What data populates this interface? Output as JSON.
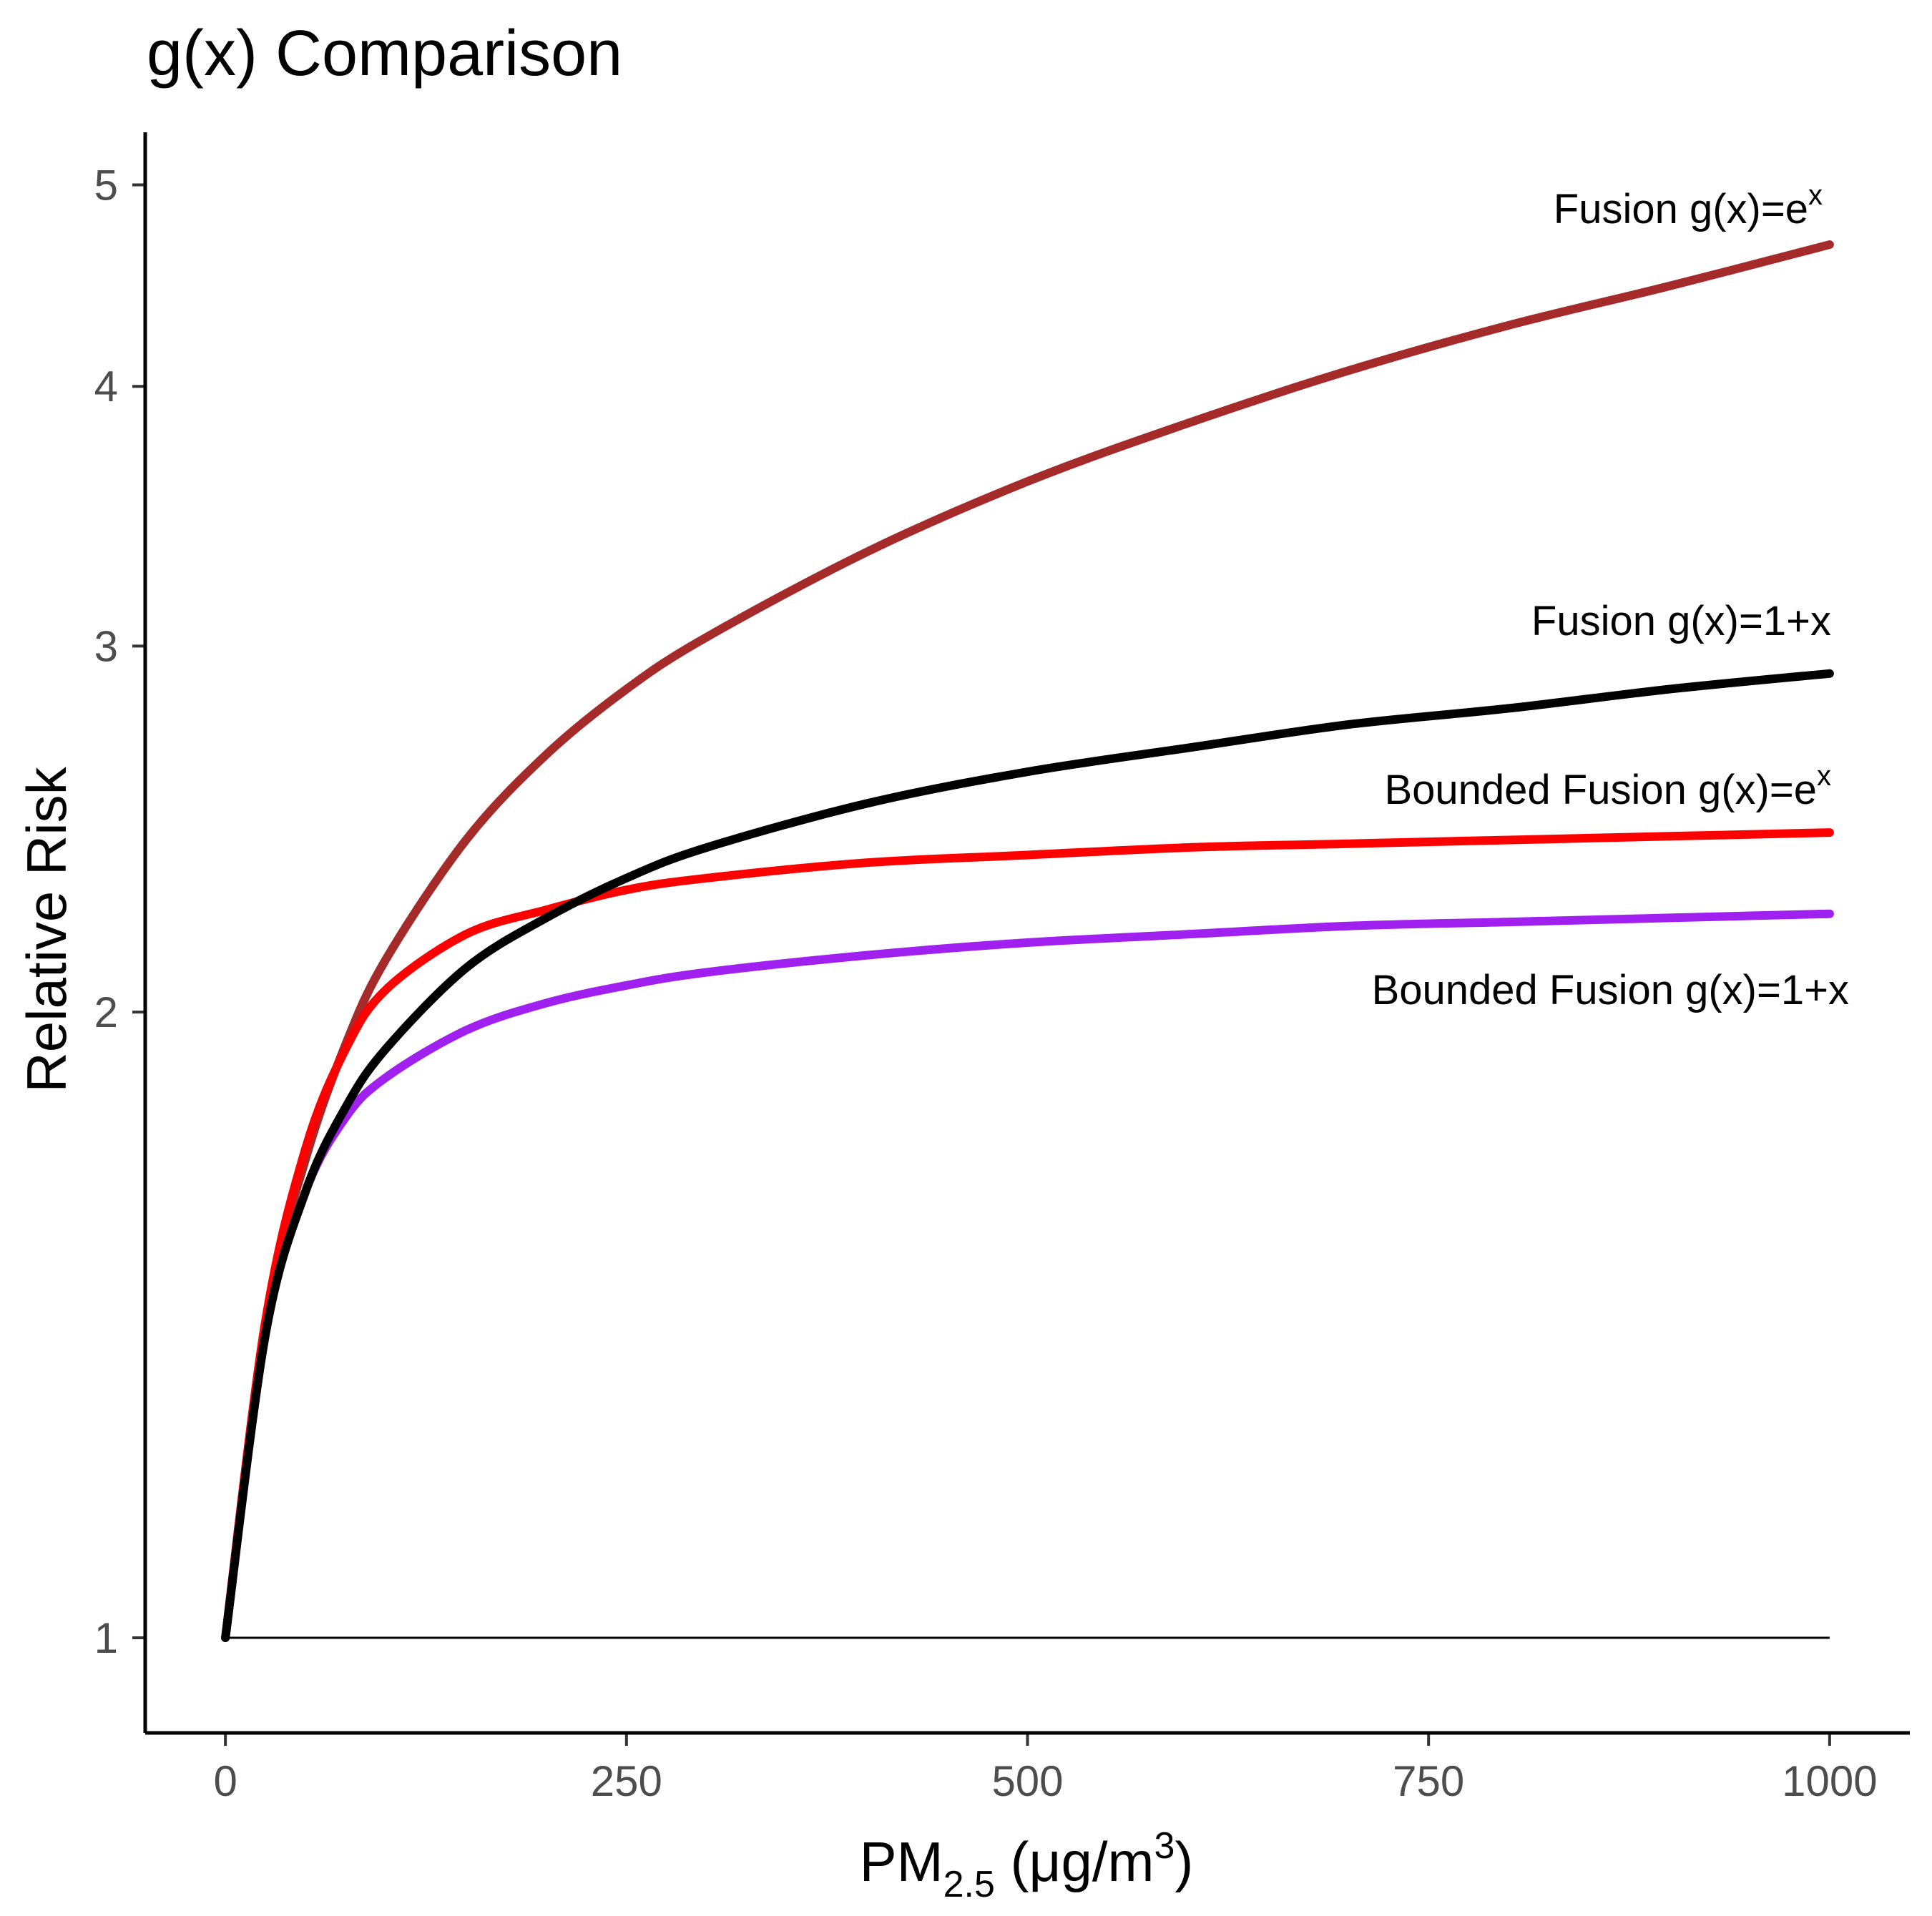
{
  "chart_data": {
    "type": "line",
    "title": "g(x) Comparison",
    "xlabel": {
      "main": "PM",
      "sub": "2.5",
      "unit_open": " (μg/m",
      "unit_sup": "3",
      "unit_close": ")"
    },
    "ylabel": "Relative Risk",
    "y_scale": "log",
    "xlim": [
      -50,
      1050
    ],
    "ylim": [
      0.9,
      5.3
    ],
    "x_ticks": [
      0,
      250,
      500,
      750,
      1000
    ],
    "x_tick_labels": [
      "0",
      "250",
      "500",
      "750",
      "1000"
    ],
    "y_ticks": [
      1,
      2,
      3,
      4,
      5
    ],
    "y_tick_labels": [
      "1",
      "2",
      "3",
      "4",
      "5"
    ],
    "grid": false,
    "legend": "none (direct labels at right)",
    "x": [
      0,
      25,
      50,
      75,
      100,
      150,
      200,
      250,
      300,
      400,
      500,
      600,
      700,
      800,
      900,
      1000
    ],
    "series": [
      {
        "name": "Fusion g(x)=e",
        "name_sup": "x",
        "color": "#a52a2a",
        "values": [
          1.0,
          1.42,
          1.7,
          1.93,
          2.12,
          2.42,
          2.66,
          2.86,
          3.03,
          3.33,
          3.6,
          3.84,
          4.07,
          4.28,
          4.47,
          4.68
        ]
      },
      {
        "name": "Fusion g(x)=1+x",
        "color": "#000000",
        "values": [
          1.0,
          1.4,
          1.64,
          1.8,
          1.92,
          2.1,
          2.22,
          2.32,
          2.4,
          2.52,
          2.61,
          2.68,
          2.75,
          2.8,
          2.86,
          2.91
        ]
      },
      {
        "name": "Bounded Fusion g(x)=e",
        "name_sup": "x",
        "color": "#ff0000",
        "values": [
          1.0,
          1.42,
          1.72,
          1.92,
          2.05,
          2.18,
          2.24,
          2.29,
          2.32,
          2.36,
          2.38,
          2.4,
          2.41,
          2.42,
          2.43,
          2.44
        ]
      },
      {
        "name": "Bounded Fusion g(x)=1+x",
        "color": "#a020f0",
        "values": [
          1.0,
          1.4,
          1.64,
          1.78,
          1.86,
          1.96,
          2.02,
          2.06,
          2.09,
          2.13,
          2.16,
          2.18,
          2.2,
          2.21,
          2.22,
          2.23
        ]
      }
    ],
    "reference_line": {
      "y": 1,
      "x_range": [
        0,
        1000
      ],
      "color": "#000000"
    }
  }
}
